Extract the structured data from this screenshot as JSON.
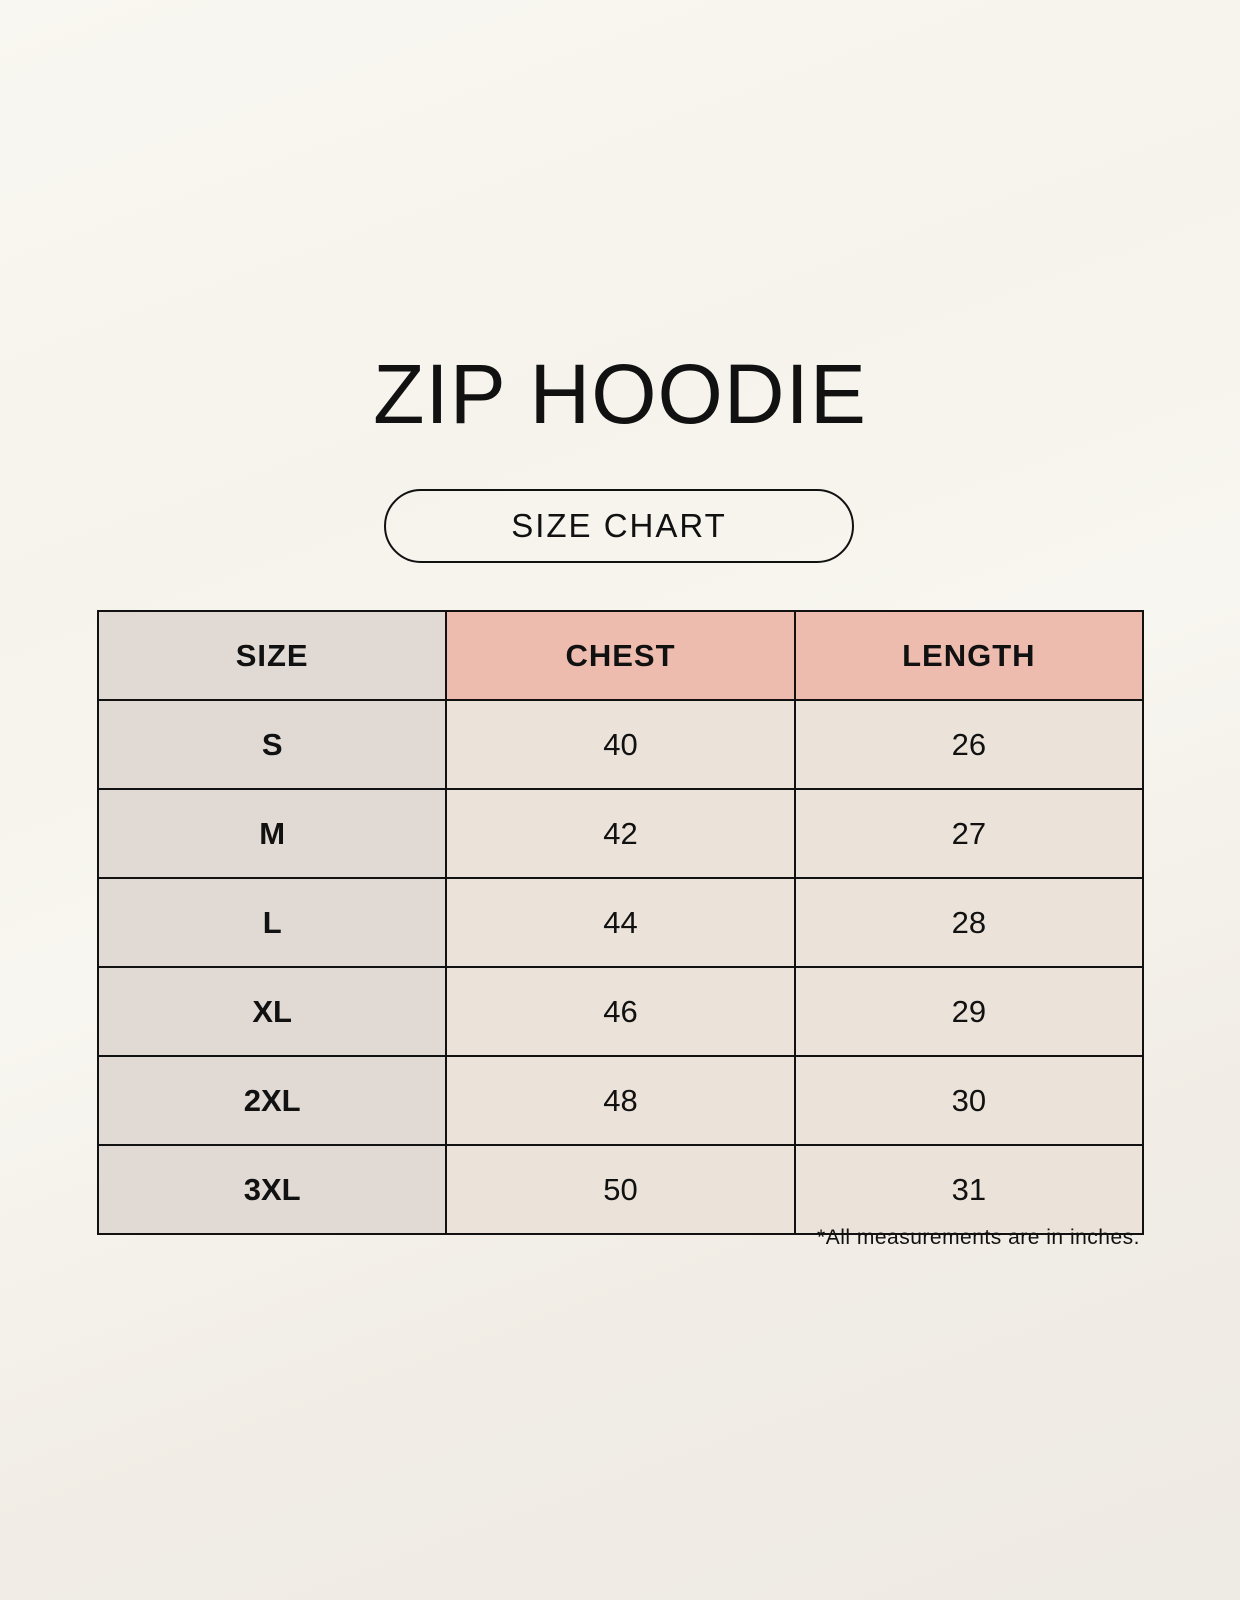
{
  "title": "ZIP HOODIE",
  "subtitle": "SIZE CHART",
  "colors": {
    "size_column": "#e0d9d4",
    "header_accent": "#eebcaf",
    "value_cells": "#ebe3da"
  },
  "table": {
    "headers": [
      "SIZE",
      "CHEST",
      "LENGTH"
    ],
    "rows": [
      [
        "S",
        "40",
        "26"
      ],
      [
        "M",
        "42",
        "27"
      ],
      [
        "L",
        "44",
        "28"
      ],
      [
        "XL",
        "46",
        "29"
      ],
      [
        "2XL",
        "48",
        "30"
      ],
      [
        "3XL",
        "50",
        "31"
      ]
    ]
  },
  "note": "*All measurements are in inches."
}
